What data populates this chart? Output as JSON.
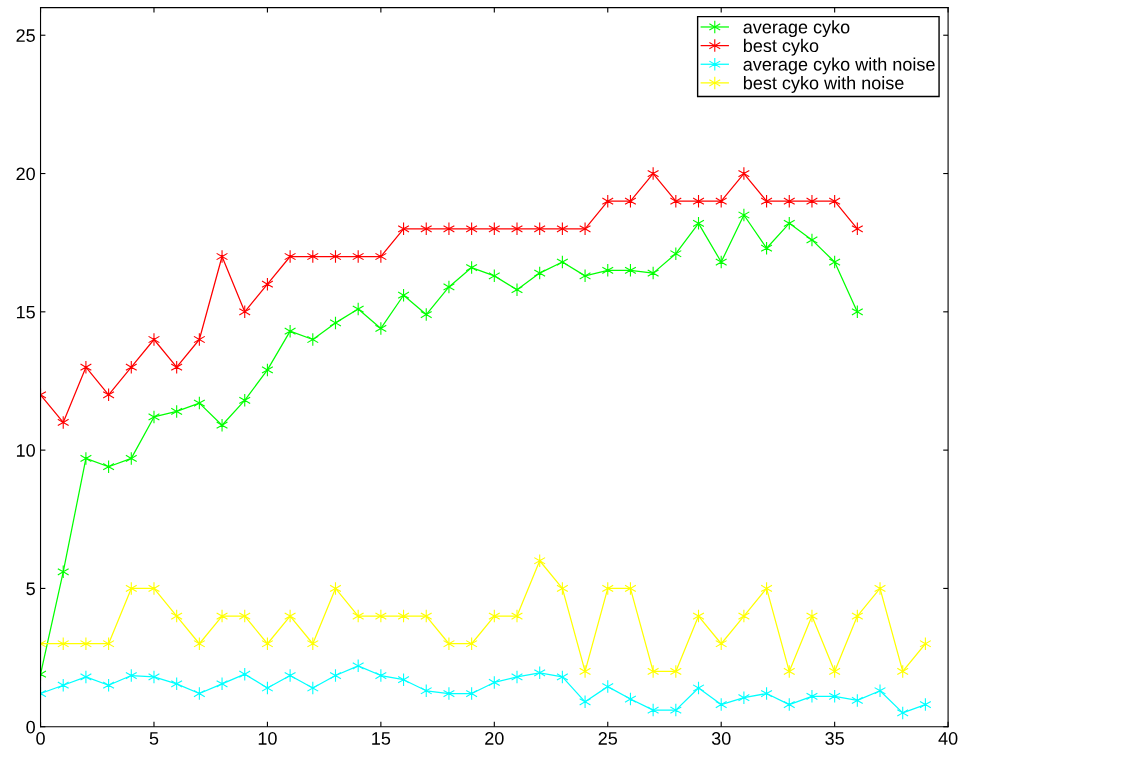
{
  "chart_data": {
    "type": "line",
    "marker": "cross",
    "line_style": "solid",
    "grid": false,
    "legend": "top right",
    "xlim": [
      0,
      40
    ],
    "xticks": [
      0,
      5,
      10,
      15,
      20,
      25,
      30,
      35,
      40
    ],
    "ylim": [
      0,
      26
    ],
    "yticks": [
      0,
      5,
      10,
      15,
      20,
      25
    ],
    "series": [
      {
        "name": "average cyko",
        "color": "#00ff00",
        "x": [
          0,
          1,
          2,
          3,
          4,
          5,
          6,
          7,
          8,
          9,
          10,
          11,
          12,
          13,
          14,
          15,
          16,
          17,
          18,
          19,
          20,
          21,
          22,
          23,
          24,
          25,
          26,
          27,
          28,
          29,
          30,
          31,
          32,
          33,
          34,
          35,
          36
        ],
        "values": [
          1.9,
          5.6,
          9.7,
          9.4,
          9.7,
          11.2,
          11.4,
          11.7,
          10.9,
          11.8,
          12.9,
          14.3,
          14.0,
          14.6,
          15.1,
          14.4,
          15.6,
          14.9,
          15.9,
          16.6,
          16.3,
          15.8,
          16.4,
          16.8,
          16.3,
          16.5,
          16.5,
          16.4,
          17.1,
          18.2,
          16.8,
          18.5,
          17.3,
          18.2,
          17.6,
          16.8,
          15.0
        ]
      },
      {
        "name": "best cyko",
        "color": "#ff0000",
        "x": [
          0,
          1,
          2,
          3,
          4,
          5,
          6,
          7,
          8,
          9,
          10,
          11,
          12,
          13,
          14,
          15,
          16,
          17,
          18,
          19,
          20,
          21,
          22,
          23,
          24,
          25,
          26,
          27,
          28,
          29,
          30,
          31,
          32,
          33,
          34,
          35,
          36
        ],
        "values": [
          12,
          11,
          13,
          12,
          13,
          14,
          13,
          14,
          17,
          15,
          16,
          17,
          17,
          17,
          17,
          17,
          18,
          18,
          18,
          18,
          18,
          18,
          18,
          18,
          18,
          19,
          19,
          20,
          19,
          19,
          19,
          20,
          19,
          19,
          19,
          19,
          18
        ]
      },
      {
        "name": "average cyko with noise",
        "color": "#00ffff",
        "x": [
          0,
          1,
          2,
          3,
          4,
          5,
          6,
          7,
          8,
          9,
          10,
          11,
          12,
          13,
          14,
          15,
          16,
          17,
          18,
          19,
          20,
          21,
          22,
          23,
          24,
          25,
          26,
          27,
          28,
          29,
          30,
          31,
          32,
          33,
          34,
          35,
          36,
          37,
          38,
          39
        ],
        "values": [
          1.2,
          1.5,
          1.8,
          1.5,
          1.85,
          1.8,
          1.55,
          1.2,
          1.55,
          1.9,
          1.4,
          1.85,
          1.4,
          1.85,
          2.2,
          1.85,
          1.7,
          1.3,
          1.2,
          1.2,
          1.6,
          1.8,
          1.95,
          1.8,
          0.9,
          1.45,
          1.0,
          0.6,
          0.6,
          1.4,
          0.8,
          1.05,
          1.2,
          0.8,
          1.1,
          1.1,
          0.95,
          1.3,
          0.5,
          0.8
        ]
      },
      {
        "name": "best cyko with noise",
        "color": "#ffff00",
        "x": [
          0,
          1,
          2,
          3,
          4,
          5,
          6,
          7,
          8,
          9,
          10,
          11,
          12,
          13,
          14,
          15,
          16,
          17,
          18,
          19,
          20,
          21,
          22,
          23,
          24,
          25,
          26,
          27,
          28,
          29,
          30,
          31,
          32,
          33,
          34,
          35,
          36,
          37,
          38,
          39
        ],
        "values": [
          3,
          3,
          3,
          3,
          5,
          5,
          4,
          3,
          4,
          4,
          3,
          4,
          3,
          5,
          4,
          4,
          4,
          4,
          3,
          3,
          4,
          4,
          6,
          5,
          2,
          5,
          5,
          2,
          2,
          4,
          3,
          4,
          5,
          2,
          4,
          2,
          4,
          5,
          2,
          3
        ]
      }
    ]
  }
}
